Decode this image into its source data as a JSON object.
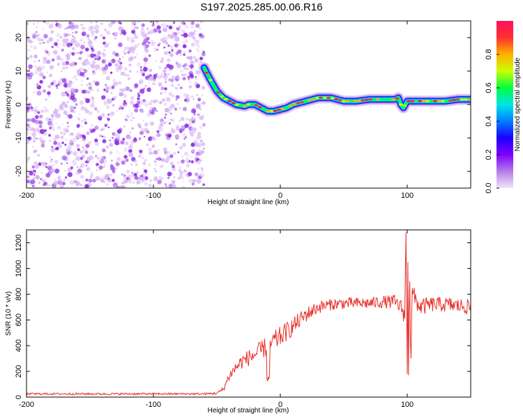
{
  "title": "S197.2025.285.00.06.R16",
  "colors": {
    "snr_line": "#e8302a",
    "noise_speckle": "#8a2be2",
    "noise_light": "#d9b8f5",
    "colorbar": [
      "#f0e6fb",
      "#b57ee6",
      "#7f00ff",
      "#1a00ff",
      "#0080ff",
      "#00e5e5",
      "#00ff40",
      "#c8ff00",
      "#ffb000",
      "#ff3030",
      "#ff1060"
    ]
  },
  "chart_data": [
    {
      "type": "heatmap",
      "panel": "top",
      "xlabel": "Height of straight line (km)",
      "ylabel": "Frequency (Hz)",
      "xlim": [
        -200,
        150
      ],
      "ylim": [
        -25,
        25
      ],
      "xticks": [
        -200,
        -100,
        0,
        100
      ],
      "xtick_labels": [
        "-200",
        "-100",
        "0",
        "100"
      ],
      "yticks": [
        -20,
        -10,
        0,
        10,
        20
      ],
      "ytick_labels": [
        "-20",
        "-10",
        "0",
        "10",
        "20"
      ],
      "noise_region_x": [
        -200,
        -60
      ],
      "ridge": {
        "x": [
          -60,
          -56,
          -50,
          -45,
          -40,
          -35,
          -28,
          -25,
          -20,
          -15,
          -10,
          -5,
          0,
          5,
          10,
          20,
          30,
          40,
          50,
          60,
          70,
          80,
          90,
          93,
          95,
          97,
          100,
          110,
          120,
          130,
          140,
          150
        ],
        "freq": [
          11,
          8,
          4,
          2,
          1,
          0,
          -0.5,
          0,
          0,
          -1,
          -2,
          -2,
          -1.5,
          -1,
          0,
          1,
          2,
          2,
          1,
          1,
          1.5,
          1.5,
          1.5,
          2,
          0,
          -1,
          1,
          1,
          1,
          1,
          1.5,
          1.5
        ]
      },
      "colorbar": {
        "label": "Normalized spectral amplitude",
        "range": [
          0,
          1
        ],
        "ticks": [
          0.0,
          0.2,
          0.4,
          0.6,
          0.8
        ],
        "tick_labels": [
          "0.0",
          "0.2",
          "0.4",
          "0.6",
          "0.8"
        ]
      }
    },
    {
      "type": "line",
      "panel": "bottom",
      "xlabel": "Height of straight line (km)",
      "ylabel": "SNR (10 * v/v)",
      "xlim": [
        -200,
        150
      ],
      "ylim": [
        0,
        1300
      ],
      "xticks": [
        -200,
        -100,
        0,
        100
      ],
      "xtick_labels": [
        "-200",
        "-100",
        "0",
        "100"
      ],
      "yticks": [
        0,
        200,
        400,
        600,
        800,
        1000,
        1200
      ],
      "ytick_labels": [
        "0",
        "200",
        "400",
        "600",
        "800",
        "1000",
        "1200"
      ],
      "series": [
        {
          "name": "SNR",
          "x": [
            -200,
            -150,
            -100,
            -60,
            -50,
            -45,
            -40,
            -35,
            -30,
            -20,
            -10,
            0,
            10,
            20,
            30,
            40,
            50,
            60,
            70,
            80,
            90,
            95,
            98,
            99,
            100,
            101,
            102,
            104,
            110,
            120,
            130,
            140,
            150
          ],
          "values": [
            25,
            25,
            25,
            25,
            30,
            60,
            170,
            230,
            280,
            330,
            400,
            470,
            550,
            640,
            700,
            720,
            730,
            730,
            730,
            740,
            740,
            700,
            640,
            1280,
            180,
            1050,
            300,
            800,
            700,
            720,
            720,
            710,
            700
          ],
          "noise_amplitude": [
            8,
            8,
            8,
            8,
            10,
            20,
            40,
            50,
            60,
            70,
            80,
            80,
            70,
            60,
            50,
            45,
            45,
            45,
            45,
            50,
            55,
            60,
            80,
            0,
            0,
            0,
            0,
            80,
            70,
            60,
            60,
            60,
            60
          ]
        }
      ]
    }
  ]
}
